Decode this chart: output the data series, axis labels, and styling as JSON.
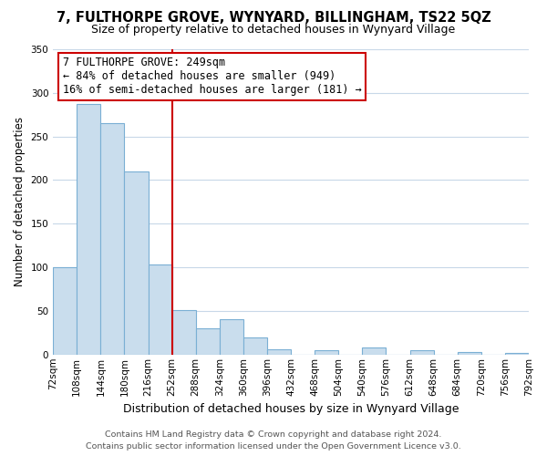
{
  "title": "7, FULTHORPE GROVE, WYNYARD, BILLINGHAM, TS22 5QZ",
  "subtitle": "Size of property relative to detached houses in Wynyard Village",
  "xlabel": "Distribution of detached houses by size in Wynyard Village",
  "ylabel": "Number of detached properties",
  "bar_edges": [
    72,
    108,
    144,
    180,
    216,
    252,
    288,
    324,
    360,
    396,
    432,
    468,
    504,
    540,
    576,
    612,
    648,
    684,
    720,
    756,
    792
  ],
  "bar_heights": [
    100,
    287,
    265,
    210,
    103,
    51,
    30,
    41,
    20,
    6,
    0,
    5,
    0,
    8,
    0,
    5,
    0,
    3,
    0,
    2
  ],
  "bar_color": "#c9dded",
  "bar_edge_color": "#7aafd4",
  "grid_color": "#c8d8e8",
  "ref_line_x": 252,
  "ref_line_color": "#cc0000",
  "annotation_box_text": "7 FULTHORPE GROVE: 249sqm\n← 84% of detached houses are smaller (949)\n16% of semi-detached houses are larger (181) →",
  "footer_line1": "Contains HM Land Registry data © Crown copyright and database right 2024.",
  "footer_line2": "Contains public sector information licensed under the Open Government Licence v3.0.",
  "tick_labels": [
    "72sqm",
    "108sqm",
    "144sqm",
    "180sqm",
    "216sqm",
    "252sqm",
    "288sqm",
    "324sqm",
    "360sqm",
    "396sqm",
    "432sqm",
    "468sqm",
    "504sqm",
    "540sqm",
    "576sqm",
    "612sqm",
    "648sqm",
    "684sqm",
    "720sqm",
    "756sqm",
    "792sqm"
  ],
  "ylim": [
    0,
    350
  ],
  "yticks": [
    0,
    50,
    100,
    150,
    200,
    250,
    300,
    350
  ],
  "title_fontsize": 10.5,
  "subtitle_fontsize": 9,
  "xlabel_fontsize": 9,
  "ylabel_fontsize": 8.5,
  "tick_fontsize": 7.5,
  "annotation_fontsize": 8.5,
  "footer_fontsize": 6.8
}
